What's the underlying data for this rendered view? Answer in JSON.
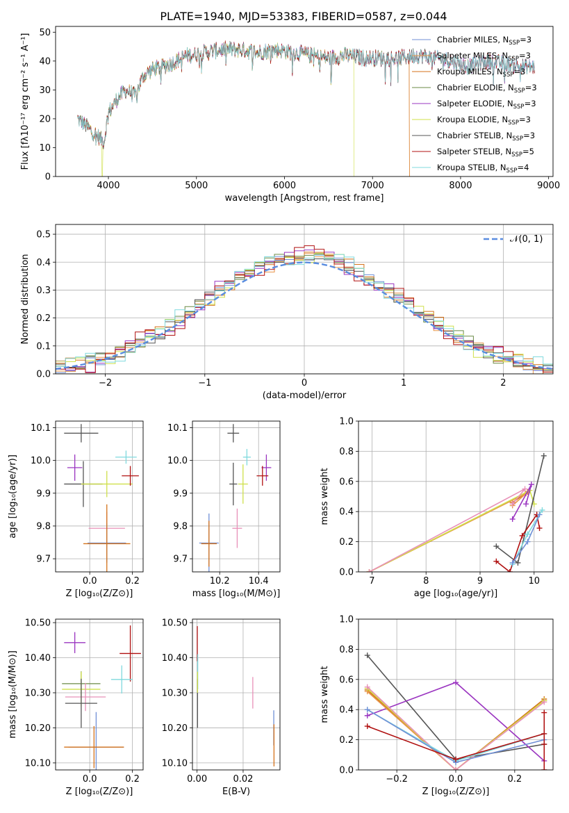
{
  "figure": {
    "title": "PLATE=1940, MJD=53383, FIBERID=0587, z=0.044"
  },
  "colors": {
    "Chabrier MILES": "#6f8fd6",
    "Salpeter MILES": "#e8954a",
    "Kroupa MILES": "#d4721a",
    "Chabrier ELODIE": "#6a8a45",
    "Salpeter ELODIE": "#9a34c0",
    "Kroupa ELODIE": "#cfe04a",
    "Chabrier STELIB": "#555555",
    "Salpeter STELIB": "#b01010",
    "Kroupa STELIB": "#7fd9dd",
    "extra_pink": "#e890b8",
    "normal": "#5a8de0"
  },
  "chart_data": [
    {
      "id": "spectrum",
      "type": "line",
      "xlabel": "wavelength [Angstrom, rest frame]",
      "ylabel": "Flux [fλ10⁻¹⁷ erg cm⁻² s⁻¹ A⁻¹]",
      "xlim": [
        3400,
        9050
      ],
      "ylim": [
        0,
        52
      ],
      "xticks": [
        4000,
        5000,
        6000,
        7000,
        8000,
        9000
      ],
      "yticks": [
        0,
        10,
        20,
        30,
        40,
        50
      ],
      "legend_position": "top-right",
      "grid": false,
      "x_range": [
        3650,
        8840
      ],
      "continuum": [
        [
          3650,
          20
        ],
        [
          3800,
          16
        ],
        [
          3950,
          12
        ],
        [
          4000,
          22
        ],
        [
          4100,
          27
        ],
        [
          4200,
          30
        ],
        [
          4300,
          28
        ],
        [
          4400,
          35
        ],
        [
          4500,
          37
        ],
        [
          4700,
          39
        ],
        [
          4900,
          42
        ],
        [
          5100,
          43
        ],
        [
          5300,
          44
        ],
        [
          5500,
          44
        ],
        [
          5700,
          43
        ],
        [
          5900,
          44
        ],
        [
          6100,
          43
        ],
        [
          6300,
          42
        ],
        [
          6500,
          41
        ],
        [
          6700,
          42
        ],
        [
          6900,
          41
        ],
        [
          7100,
          41
        ],
        [
          7300,
          41
        ],
        [
          7500,
          42
        ],
        [
          7700,
          41
        ],
        [
          7900,
          40
        ],
        [
          8100,
          38
        ],
        [
          8300,
          40
        ],
        [
          8500,
          39
        ],
        [
          8700,
          38
        ],
        [
          8840,
          38
        ]
      ],
      "series": [
        {
          "name": "Chabrier MILES, N_SSP=3",
          "label_main": "Chabrier MILES, N",
          "label_sub": "SSP",
          "label_tail": "=3"
        },
        {
          "name": "Salpeter MILES, N_SSP=3",
          "label_main": "Salpeter MILES, N",
          "label_sub": "SSP",
          "label_tail": "=3"
        },
        {
          "name": "Kroupa MILES, N_SSP=3",
          "label_main": "Kroupa MILES, N",
          "label_sub": "SSP",
          "label_tail": "=3"
        },
        {
          "name": "Chabrier ELODIE, N_SSP=3",
          "label_main": "Chabrier ELODIE, N",
          "label_sub": "SSP",
          "label_tail": "=3"
        },
        {
          "name": "Salpeter ELODIE, N_SSP=3",
          "label_main": "Salpeter ELODIE, N",
          "label_sub": "SSP",
          "label_tail": "=3"
        },
        {
          "name": "Kroupa ELODIE, N_SSP=3",
          "label_main": "Kroupa ELODIE, N",
          "label_sub": "SSP",
          "label_tail": "=3"
        },
        {
          "name": "Chabrier STELIB, N_SSP=3",
          "label_main": "Chabrier STELIB, N",
          "label_sub": "SSP",
          "label_tail": "=3"
        },
        {
          "name": "Salpeter STELIB, N_SSP=5",
          "label_main": "Salpeter STELIB, N",
          "label_sub": "SSP",
          "label_tail": "=5"
        },
        {
          "name": "Kroupa STELIB, N_SSP=4",
          "label_main": "Kroupa STELIB, N",
          "label_sub": "SSP",
          "label_tail": "=4"
        }
      ],
      "cutoffs": [
        {
          "series": "Kroupa ELODIE, N_SSP=3",
          "x": 6790
        },
        {
          "series": "Salpeter MILES, N_SSP=3",
          "x": 7420
        },
        {
          "series": "Kroupa MILES, N_SSP=3",
          "x": 7420
        }
      ],
      "low_end_dips": [
        {
          "series": "Kroupa ELODIE, N_SSP=3",
          "x": 3930
        }
      ]
    },
    {
      "id": "residuals",
      "type": "histogram",
      "xlabel": "(data-model)/error",
      "ylabel": "Normed distribution",
      "xlim": [
        -2.5,
        2.5
      ],
      "ylim": [
        0,
        0.535
      ],
      "xticks": [
        -2,
        -1,
        0,
        1,
        2
      ],
      "yticks": [
        0.0,
        0.1,
        0.2,
        0.3,
        0.4,
        0.5
      ],
      "grid": true,
      "bin_width": 0.1,
      "legend_position": "top-right",
      "normal_label": "𝒩(0, 1)",
      "variation": {
        "Chabrier MILES": 0.0,
        "Salpeter MILES": 0.018,
        "Kroupa MILES": -0.014,
        "Chabrier ELODIE": 0.01,
        "Salpeter ELODIE": -0.018,
        "Kroupa ELODIE": 0.014,
        "Chabrier STELIB": -0.006,
        "Salpeter STELIB": 0.022,
        "Kroupa STELIB": -0.022
      }
    },
    {
      "id": "age_vs_Z",
      "type": "errorbar",
      "xlabel": "Z [log₁₀(Z/Z⊙)]",
      "ylabel": "age  [log₁₀(age/yr)]",
      "xlim": [
        -0.16,
        0.25
      ],
      "ylim": [
        9.66,
        10.12
      ],
      "xticks": [
        0.0,
        0.2
      ],
      "yticks": [
        9.7,
        9.8,
        9.9,
        10.0,
        10.1
      ],
      "grid": true,
      "points": [
        {
          "color": "Chabrier STELIB",
          "x": -0.04,
          "xerr": 0.08,
          "y": 10.083,
          "yerr": 0.028
        },
        {
          "color": "Chabrier STELIB",
          "x": -0.03,
          "xerr": 0.09,
          "y": 9.928,
          "yerr": 0.07
        },
        {
          "color": "Salpeter ELODIE",
          "x": -0.07,
          "xerr": 0.035,
          "y": 9.978,
          "yerr": 0.04
        },
        {
          "color": "Kroupa ELODIE",
          "x": 0.08,
          "xerr": 0.12,
          "y": 9.928,
          "yerr": 0.04
        },
        {
          "color": "Kroupa STELIB",
          "x": 0.17,
          "xerr": 0.05,
          "y": 10.01,
          "yerr": 0.02
        },
        {
          "color": "Salpeter STELIB",
          "x": 0.19,
          "xerr": 0.04,
          "y": 9.953,
          "yerr": 0.03
        },
        {
          "color": "extra_pink",
          "x": 0.08,
          "xerr": 0.085,
          "y": 9.793,
          "yerr": 0.05
        },
        {
          "color": "Chabrier MILES",
          "x": 0.08,
          "xerr": 0.09,
          "y": 9.748,
          "yerr": 0.06
        },
        {
          "color": "Kroupa MILES",
          "x": 0.08,
          "xerr": 0.11,
          "y": 9.746,
          "yerr": 0.12
        }
      ]
    },
    {
      "id": "age_vs_mass",
      "type": "errorbar",
      "xlabel": "mass [log₁₀(M/M⊙)]",
      "ylabel": "",
      "xlim": [
        10.06,
        10.51
      ],
      "ylim": [
        9.66,
        10.12
      ],
      "xticks": [
        10.2,
        10.4
      ],
      "yticks": [
        9.7,
        9.8,
        9.9,
        10.0,
        10.1
      ],
      "grid": true,
      "points": [
        {
          "color": "Chabrier STELIB",
          "x": 10.27,
          "xerr": 0.03,
          "y": 10.083,
          "yerr": 0.028
        },
        {
          "color": "Chabrier STELIB",
          "x": 10.27,
          "xerr": 0.02,
          "y": 9.928,
          "yerr": 0.065
        },
        {
          "color": "Kroupa STELIB",
          "x": 10.34,
          "xerr": 0.02,
          "y": 10.01,
          "yerr": 0.025
        },
        {
          "color": "Salpeter ELODIE",
          "x": 10.44,
          "xerr": 0.025,
          "y": 9.978,
          "yerr": 0.04
        },
        {
          "color": "Salpeter STELIB",
          "x": 10.42,
          "xerr": 0.03,
          "y": 9.953,
          "yerr": 0.03
        },
        {
          "color": "Kroupa ELODIE",
          "x": 10.32,
          "xerr": 0.025,
          "y": 9.928,
          "yerr": 0.06
        },
        {
          "color": "extra_pink",
          "x": 10.29,
          "xerr": 0.025,
          "y": 9.793,
          "yerr": 0.06
        },
        {
          "color": "Chabrier MILES",
          "x": 10.145,
          "xerr": 0.05,
          "y": 9.748,
          "yerr": 0.09
        },
        {
          "color": "Kroupa MILES",
          "x": 10.145,
          "xerr": 0.04,
          "y": 9.746,
          "yerr": 0.07
        }
      ]
    },
    {
      "id": "massweight_vs_age",
      "type": "line",
      "xlabel": "age  [log₁₀(age/yr)]",
      "ylabel": "mass weight",
      "xlim": [
        6.75,
        10.35
      ],
      "ylim": [
        0,
        1.0
      ],
      "xticks": [
        7,
        8,
        9,
        10
      ],
      "yticks": [
        0.0,
        0.2,
        0.4,
        0.6,
        0.8,
        1.0
      ],
      "grid": true,
      "series": [
        {
          "color": "Kroupa MILES",
          "x": [
            6.95,
            9.88,
            9.6
          ],
          "y": [
            0.0,
            0.53,
            0.46
          ]
        },
        {
          "color": "Salpeter MILES",
          "x": [
            6.95,
            9.85,
            9.6
          ],
          "y": [
            0.0,
            0.52,
            0.44
          ]
        },
        {
          "color": "Kroupa ELODIE",
          "x": [
            6.95,
            9.92,
            10.0
          ],
          "y": [
            0.0,
            0.54,
            0.45
          ]
        },
        {
          "color": "extra_pink",
          "x": [
            6.95,
            9.83,
            9.6
          ],
          "y": [
            0.0,
            0.55,
            0.45
          ]
        },
        {
          "color": "Salpeter ELODIE",
          "x": [
            9.6,
            9.95,
            9.85
          ],
          "y": [
            0.35,
            0.58,
            0.45
          ]
        },
        {
          "color": "Chabrier STELIB",
          "x": [
            9.3,
            9.7,
            10.18
          ],
          "y": [
            0.17,
            0.06,
            0.77
          ]
        },
        {
          "color": "Salpeter STELIB",
          "x": [
            9.3,
            9.55,
            9.78,
            10.05,
            10.1
          ],
          "y": [
            0.07,
            0.0,
            0.24,
            0.38,
            0.29
          ]
        },
        {
          "color": "Kroupa STELIB",
          "x": [
            9.6,
            9.88,
            10.15
          ],
          "y": [
            0.05,
            0.25,
            0.41
          ]
        },
        {
          "color": "Chabrier MILES",
          "x": [
            9.6,
            9.88,
            10.1
          ],
          "y": [
            0.06,
            0.2,
            0.38
          ]
        }
      ]
    },
    {
      "id": "mass_vs_Z",
      "type": "errorbar",
      "xlabel": "Z [log₁₀(Z/Z⊙)]",
      "ylabel": "mass [log₁₀(M/M⊙)]",
      "xlim": [
        -0.16,
        0.25
      ],
      "ylim": [
        10.08,
        10.51
      ],
      "xticks": [
        0.0,
        0.2
      ],
      "yticks": [
        10.1,
        10.2,
        10.3,
        10.4,
        10.5
      ],
      "grid": true,
      "points": [
        {
          "color": "Salpeter ELODIE",
          "x": -0.07,
          "xerr": 0.05,
          "y": 10.443,
          "yerr": 0.03
        },
        {
          "color": "Salpeter STELIB",
          "x": 0.19,
          "xerr": 0.05,
          "y": 10.412,
          "yerr": 0.08
        },
        {
          "color": "Kroupa STELIB",
          "x": 0.15,
          "xerr": 0.05,
          "y": 10.338,
          "yerr": 0.04
        },
        {
          "color": "Chabrier ELODIE",
          "x": -0.04,
          "xerr": 0.09,
          "y": 10.326,
          "yerr": 0.035
        },
        {
          "color": "Kroupa ELODIE",
          "x": -0.04,
          "xerr": 0.09,
          "y": 10.31,
          "yerr": 0.05
        },
        {
          "color": "extra_pink",
          "x": -0.02,
          "xerr": 0.095,
          "y": 10.288,
          "yerr": 0.04
        },
        {
          "color": "Chabrier STELIB",
          "x": -0.04,
          "xerr": 0.075,
          "y": 10.27,
          "yerr": 0.07
        },
        {
          "color": "Chabrier MILES",
          "x": 0.03,
          "xerr": 0.13,
          "y": 10.145,
          "yerr": 0.1
        },
        {
          "color": "Kroupa MILES",
          "x": 0.02,
          "xerr": 0.14,
          "y": 10.145,
          "yerr": 0.06
        }
      ]
    },
    {
      "id": "mass_vs_EBV",
      "type": "errorbar",
      "xlabel": "E(B-V)",
      "ylabel": "",
      "xlim": [
        -0.002,
        0.036
      ],
      "ylim": [
        10.08,
        10.51
      ],
      "xticks": [
        0.0,
        0.02
      ],
      "yticks": [
        10.1,
        10.2,
        10.3,
        10.4,
        10.5
      ],
      "grid": true,
      "points": [
        {
          "color": "Salpeter STELIB",
          "x": 0.0001,
          "xerr": 0,
          "y": 10.44,
          "yerr": 0.05
        },
        {
          "color": "Kroupa STELIB",
          "x": 0.0003,
          "xerr": 0,
          "y": 10.36,
          "yerr": 0.05
        },
        {
          "color": "Chabrier STELIB",
          "x": 0.0002,
          "xerr": 0,
          "y": 10.27,
          "yerr": 0.07
        },
        {
          "color": "Kroupa ELODIE",
          "x": 0.0002,
          "xerr": 0,
          "y": 10.33,
          "yerr": 0.03
        },
        {
          "color": "extra_pink",
          "x": 0.0242,
          "xerr": 0,
          "y": 10.3,
          "yerr": 0.045
        },
        {
          "color": "Chabrier MILES",
          "x": 0.0333,
          "xerr": 0,
          "y": 10.2,
          "yerr": 0.05
        },
        {
          "color": "Kroupa MILES",
          "x": 0.0334,
          "xerr": 0,
          "y": 10.15,
          "yerr": 0.06
        }
      ]
    },
    {
      "id": "massweight_vs_Z",
      "type": "line",
      "xlabel": "Z [log₁₀(Z/Z⊙)]",
      "ylabel": "mass weight",
      "xlim": [
        -0.33,
        0.33
      ],
      "ylim": [
        0,
        1.0
      ],
      "xticks": [
        -0.2,
        0.0,
        0.2
      ],
      "yticks": [
        0.0,
        0.2,
        0.4,
        0.6,
        0.8,
        1.0
      ],
      "grid": true,
      "series": [
        {
          "color": "Chabrier STELIB",
          "x": [
            -0.3,
            0.0,
            0.3
          ],
          "y": [
            0.76,
            0.07,
            0.17
          ]
        },
        {
          "color": "Salpeter ELODIE",
          "x": [
            -0.3,
            0.0,
            0.3
          ],
          "y": [
            0.36,
            0.58,
            0.06
          ]
        },
        {
          "color": "Kroupa MILES",
          "x": [
            -0.3,
            0.0,
            0.3
          ],
          "y": [
            0.53,
            0.0,
            0.47
          ]
        },
        {
          "color": "Salpeter MILES",
          "x": [
            -0.3,
            0.0,
            0.3
          ],
          "y": [
            0.52,
            0.0,
            0.46
          ]
        },
        {
          "color": "Kroupa ELODIE",
          "x": [
            -0.3,
            0.0,
            0.3
          ],
          "y": [
            0.54,
            0.0,
            0.46
          ]
        },
        {
          "color": "extra_pink",
          "x": [
            -0.3,
            0.0,
            0.3
          ],
          "y": [
            0.55,
            0.0,
            0.45
          ]
        },
        {
          "color": "Kroupa STELIB",
          "x": [
            -0.3,
            0.0,
            0.3
          ],
          "y": [
            0.4,
            0.06,
            0.24
          ]
        },
        {
          "color": "Chabrier MILES",
          "x": [
            -0.3,
            0.0,
            0.3
          ],
          "y": [
            0.4,
            0.05,
            0.2
          ]
        },
        {
          "color": "Salpeter STELIB",
          "x": [
            -0.3,
            0.0,
            0.3
          ],
          "y": [
            0.29,
            0.07,
            0.24
          ]
        },
        {
          "color": "Salpeter STELIB",
          "x": [
            0.3,
            0.3,
            0.3
          ],
          "y": [
            0.38,
            0.17,
            0.0
          ]
        }
      ]
    }
  ]
}
